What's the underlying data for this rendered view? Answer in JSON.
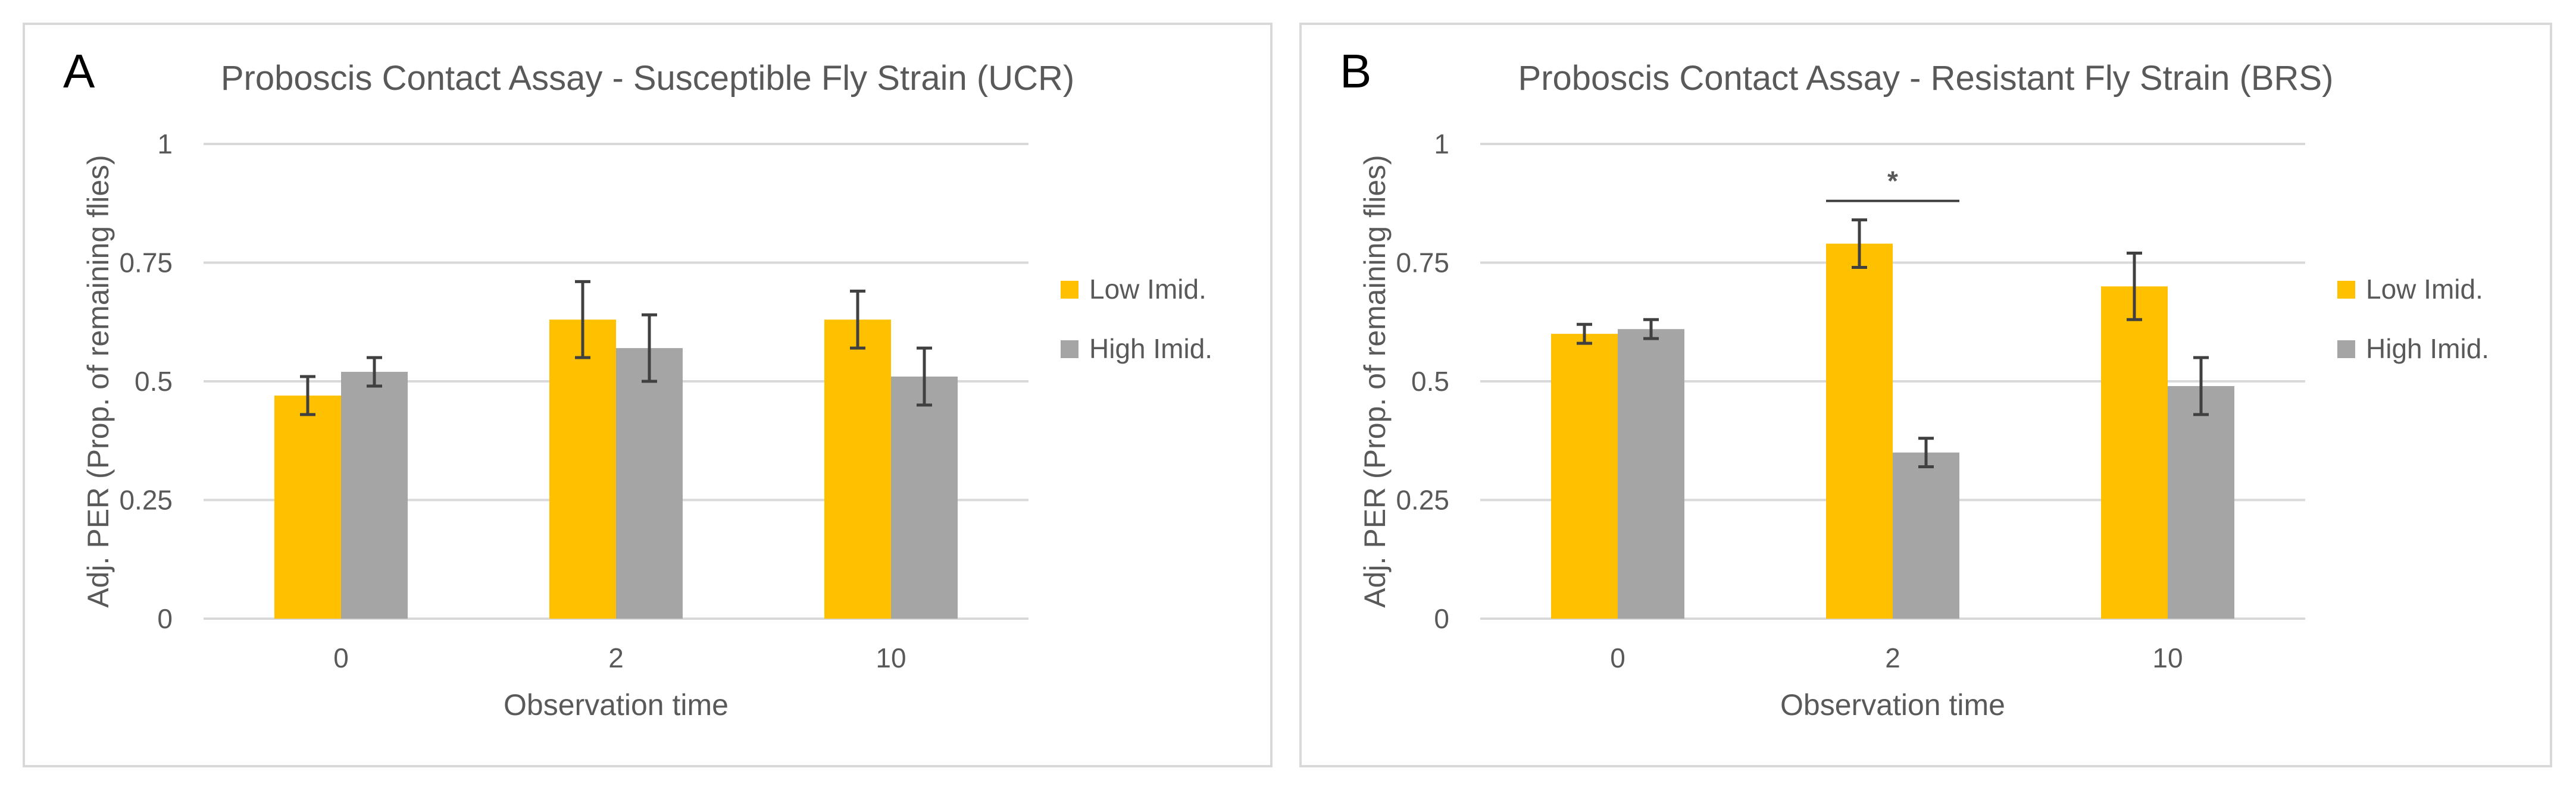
{
  "chart_data": [
    {
      "panel": "A",
      "type": "bar",
      "title": "Proboscis Contact Assay - Susceptible Fly Strain (UCR)",
      "xlabel": "Observation time",
      "ylabel": "Adj. PER (Prop. of remaining flies)",
      "ylim": [
        0,
        1
      ],
      "yticks": [
        "0",
        "0.25",
        "0.5",
        "0.75",
        "1"
      ],
      "grid": true,
      "legend": "right",
      "categories": [
        "0",
        "2",
        "10"
      ],
      "series": [
        {
          "name": "Low Imid.",
          "color": "#ffc000",
          "values": [
            0.47,
            0.63,
            0.63
          ],
          "errors": [
            0.04,
            0.08,
            0.06
          ]
        },
        {
          "name": "High Imid.",
          "color": "#a5a5a5",
          "values": [
            0.52,
            0.57,
            0.51
          ],
          "errors": [
            0.03,
            0.07,
            0.06
          ]
        }
      ],
      "annotations": []
    },
    {
      "panel": "B",
      "type": "bar",
      "title": "Proboscis Contact Assay - Resistant Fly Strain (BRS)",
      "xlabel": "Observation time",
      "ylabel": "Adj. PER (Prop. of remaining flies)",
      "ylim": [
        0,
        1
      ],
      "yticks": [
        "0",
        "0.25",
        "0.5",
        "0.75",
        "1"
      ],
      "grid": true,
      "legend": "right",
      "categories": [
        "0",
        "2",
        "10"
      ],
      "series": [
        {
          "name": "Low Imid.",
          "color": "#ffc000",
          "values": [
            0.6,
            0.79,
            0.7
          ],
          "errors": [
            0.02,
            0.05,
            0.07
          ]
        },
        {
          "name": "High Imid.",
          "color": "#a5a5a5",
          "values": [
            0.61,
            0.35,
            0.49
          ],
          "errors": [
            0.02,
            0.03,
            0.06
          ]
        }
      ],
      "annotations": [
        {
          "text": "*",
          "category": "2",
          "y": 0.88
        }
      ]
    }
  ]
}
